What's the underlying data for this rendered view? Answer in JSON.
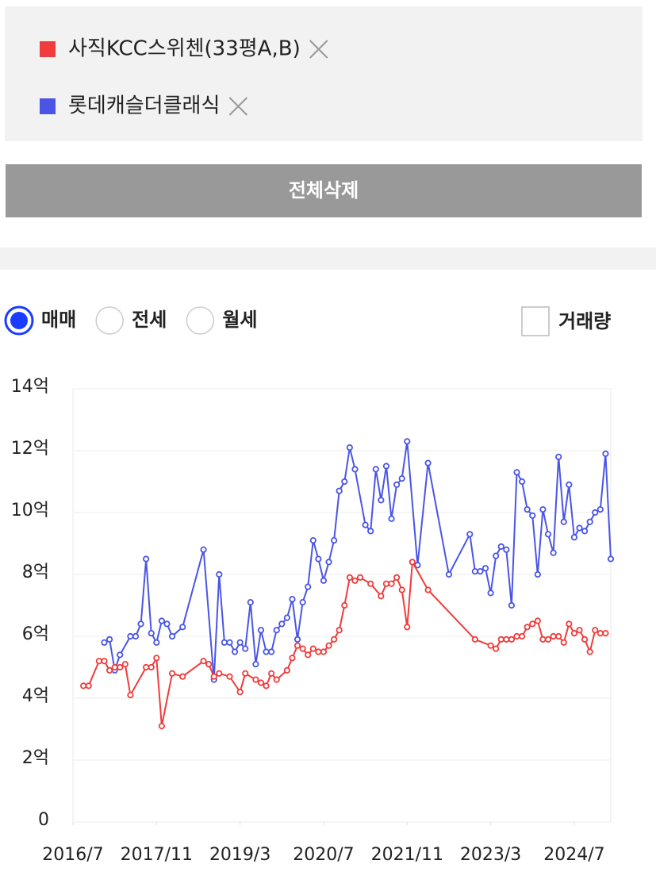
{
  "legend_button": "전체삭제",
  "radio_options": [
    "매매",
    "전세",
    "월세"
  ],
  "selected_radio": 0,
  "checkbox_label": "거래량",
  "chart_data": {
    "type": "line",
    "xlim": [
      "2016/7",
      "2025/2"
    ],
    "xticks": [
      "2016/7",
      "2017/11",
      "2019/3",
      "2020/7",
      "2021/11",
      "2023/3",
      "2024/7"
    ],
    "ylim": [
      0,
      14
    ],
    "yticks": [
      0,
      {
        "value": 2,
        "label": "2억"
      },
      {
        "value": 4,
        "label": "4억"
      },
      {
        "value": 6,
        "label": "6억"
      },
      {
        "value": 8,
        "label": "8억"
      },
      {
        "value": 10,
        "label": "10억"
      },
      {
        "value": 12,
        "label": "12억"
      },
      {
        "value": 14,
        "label": "14억"
      }
    ],
    "grid": true,
    "series": [
      {
        "name": "사직KCC스위첸(33평A,B)",
        "color": "#f03c3c",
        "x": [
          "2016/9",
          "2016/10",
          "2016/12",
          "2017/1",
          "2017/2",
          "2017/3",
          "2017/4",
          "2017/5",
          "2017/6",
          "2017/9",
          "2017/10",
          "2017/11",
          "2017/12",
          "2018/2",
          "2018/4",
          "2018/8",
          "2018/9",
          "2018/10",
          "2018/11",
          "2019/1",
          "2019/3",
          "2019/4",
          "2019/6",
          "2019/7",
          "2019/8",
          "2019/9",
          "2019/10",
          "2019/12",
          "2020/1",
          "2020/2",
          "2020/3",
          "2020/4",
          "2020/5",
          "2020/6",
          "2020/7",
          "2020/8",
          "2020/9",
          "2020/10",
          "2020/11",
          "2020/12",
          "2021/1",
          "2021/2",
          "2021/4",
          "2021/6",
          "2021/7",
          "2021/8",
          "2021/9",
          "2021/10",
          "2021/11",
          "2021/12",
          "2022/3",
          "2022/12",
          "2023/3",
          "2023/4",
          "2023/5",
          "2023/6",
          "2023/7",
          "2023/8",
          "2023/9",
          "2023/10",
          "2023/11",
          "2023/12",
          "2024/1",
          "2024/2",
          "2024/3",
          "2024/4",
          "2024/5",
          "2024/6",
          "2024/7",
          "2024/8",
          "2024/9",
          "2024/10",
          "2024/11",
          "2024/12",
          "2025/1"
        ],
        "values": [
          4.4,
          4.4,
          5.2,
          5.2,
          4.9,
          5.0,
          5.0,
          5.1,
          4.1,
          5.0,
          5.0,
          5.3,
          3.1,
          4.8,
          4.7,
          5.2,
          5.1,
          4.7,
          4.8,
          4.7,
          4.2,
          4.8,
          4.6,
          4.5,
          4.4,
          4.8,
          4.6,
          4.9,
          5.3,
          5.7,
          5.6,
          5.4,
          5.6,
          5.5,
          5.5,
          5.7,
          5.9,
          6.2,
          7.0,
          7.9,
          7.8,
          7.9,
          7.7,
          7.3,
          7.7,
          7.7,
          7.9,
          7.5,
          6.3,
          8.4,
          7.5,
          5.9,
          5.7,
          5.6,
          5.9,
          5.9,
          5.9,
          6.0,
          6.0,
          6.3,
          6.4,
          6.5,
          5.9,
          5.9,
          6.0,
          6.0,
          5.8,
          6.4,
          6.1,
          6.2,
          5.9,
          5.5,
          6.2,
          6.1,
          6.1
        ]
      },
      {
        "name": "롯데캐슬더클래식",
        "color": "#4a55e6",
        "x": [
          "2017/1",
          "2017/2",
          "2017/3",
          "2017/4",
          "2017/6",
          "2017/7",
          "2017/8",
          "2017/9",
          "2017/10",
          "2017/11",
          "2017/12",
          "2018/1",
          "2018/2",
          "2018/4",
          "2018/8",
          "2018/10",
          "2018/11",
          "2018/12",
          "2019/1",
          "2019/2",
          "2019/3",
          "2019/4",
          "2019/5",
          "2019/6",
          "2019/7",
          "2019/8",
          "2019/9",
          "2019/10",
          "2019/11",
          "2019/12",
          "2020/1",
          "2020/2",
          "2020/3",
          "2020/4",
          "2020/5",
          "2020/6",
          "2020/7",
          "2020/8",
          "2020/9",
          "2020/10",
          "2020/11",
          "2020/12",
          "2021/1",
          "2021/3",
          "2021/4",
          "2021/5",
          "2021/6",
          "2021/7",
          "2021/8",
          "2021/9",
          "2021/10",
          "2021/11",
          "2022/1",
          "2022/3",
          "2022/7",
          "2022/11",
          "2022/12",
          "2023/1",
          "2023/2",
          "2023/3",
          "2023/4",
          "2023/5",
          "2023/6",
          "2023/7",
          "2023/8",
          "2023/9",
          "2023/10",
          "2023/11",
          "2023/12",
          "2024/1",
          "2024/2",
          "2024/3",
          "2024/4",
          "2024/5",
          "2024/6",
          "2024/7",
          "2024/8",
          "2024/9",
          "2024/10",
          "2024/11",
          "2024/12",
          "2025/1",
          "2025/2"
        ],
        "values": [
          5.8,
          5.9,
          4.9,
          5.4,
          6.0,
          6.0,
          6.4,
          8.5,
          6.1,
          5.8,
          6.5,
          6.4,
          6.0,
          6.3,
          8.8,
          4.6,
          8.0,
          5.8,
          5.8,
          5.5,
          5.8,
          5.6,
          7.1,
          5.1,
          6.2,
          5.5,
          5.5,
          6.2,
          6.4,
          6.6,
          7.2,
          5.9,
          7.1,
          7.6,
          9.1,
          8.5,
          7.8,
          8.4,
          9.1,
          10.7,
          11.0,
          12.1,
          11.4,
          9.6,
          9.4,
          11.4,
          10.4,
          11.5,
          9.8,
          10.9,
          11.1,
          12.3,
          8.3,
          11.6,
          8.0,
          9.3,
          8.1,
          8.1,
          8.2,
          7.4,
          8.6,
          8.9,
          8.8,
          7.0,
          11.3,
          11.0,
          10.1,
          9.9,
          8.0,
          10.1,
          9.3,
          8.7,
          11.8,
          9.7,
          10.9,
          9.2,
          9.5,
          9.4,
          9.7,
          10.0,
          10.1,
          11.9,
          8.5
        ]
      }
    ]
  }
}
